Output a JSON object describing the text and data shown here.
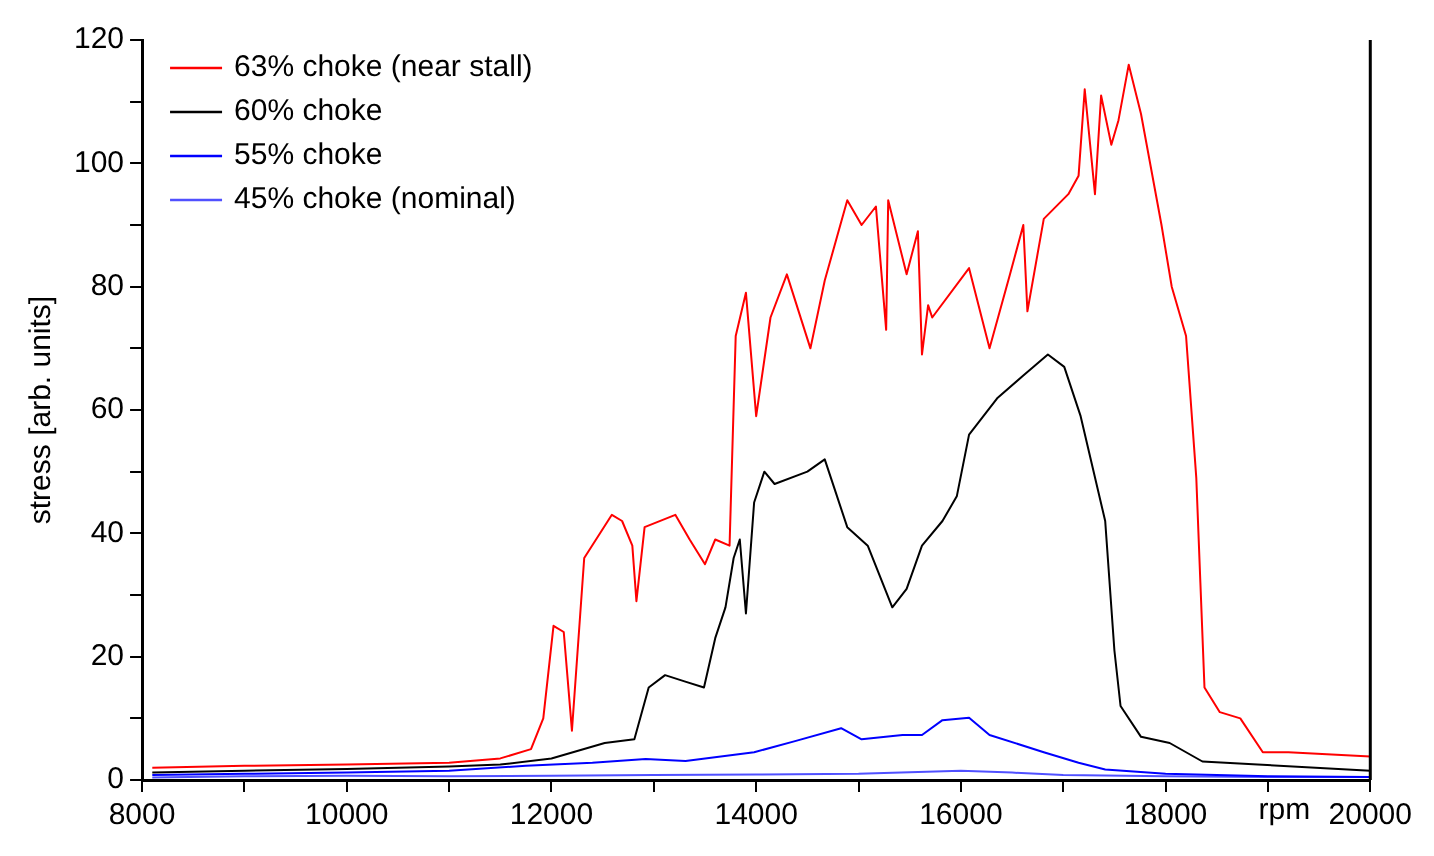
{
  "chart_data": {
    "type": "line",
    "ylabel": "stress [arb. units]",
    "xlabel": "rpm",
    "xlim": [
      8000,
      20000
    ],
    "ylim": [
      0,
      120
    ],
    "xticks": [
      8000,
      {
        "value": 9000,
        "label": null
      },
      10000,
      {
        "value": 11000,
        "label": null
      },
      12000,
      {
        "value": 13000,
        "label": null
      },
      14000,
      {
        "value": 15000,
        "label": null
      },
      16000,
      {
        "value": 17000,
        "label": null
      },
      18000,
      {
        "value": 19000,
        "label": null
      },
      20000
    ],
    "yticks": [
      0,
      {
        "value": 10,
        "label": null
      },
      20,
      {
        "value": 30,
        "label": null
      },
      40,
      {
        "value": 50,
        "label": null
      },
      60,
      {
        "value": 70,
        "label": null
      },
      80,
      {
        "value": 90,
        "label": null
      },
      100,
      {
        "value": 110,
        "label": null
      },
      120
    ],
    "grid": false,
    "legend": "top left",
    "marker": "none",
    "line_style": "solid",
    "series": [
      {
        "name": "63% choke (near stall)",
        "color": "#ff0000",
        "x": [
          8100,
          9000,
          10000,
          11000,
          11500,
          11800,
          11920,
          12020,
          12120,
          12200,
          12320,
          12590,
          12690,
          12790,
          12830,
          12910,
          13210,
          13350,
          13500,
          13600,
          13740,
          13800,
          13900,
          14000,
          14140,
          14300,
          14530,
          14670,
          14890,
          15030,
          15170,
          15270,
          15290,
          15470,
          15580,
          15620,
          15680,
          15720,
          16080,
          16280,
          16480,
          16610,
          16650,
          16810,
          17050,
          17150,
          17210,
          17310,
          17370,
          17470,
          17540,
          17640,
          17760,
          17960,
          18060,
          18200,
          18300,
          18340,
          18380,
          18530,
          18730,
          18950,
          19200,
          20000
        ],
        "values": [
          2,
          2.3,
          2.5,
          2.8,
          3.5,
          5,
          10,
          25,
          24,
          8,
          36,
          43,
          42,
          38,
          29,
          41,
          43,
          39,
          35,
          39,
          38,
          72,
          79,
          59,
          75,
          82,
          70,
          81,
          94,
          90,
          93,
          73,
          94,
          82,
          89,
          69,
          77,
          75,
          83,
          70,
          82,
          90,
          76,
          91,
          95,
          98,
          112,
          95,
          111,
          103,
          107,
          116,
          108,
          90,
          80,
          72,
          49,
          32,
          15,
          11,
          10,
          4.5,
          4.5,
          3.8
        ]
      },
      {
        "name": "60% choke",
        "color": "#000000",
        "x": [
          8100,
          9000,
          10000,
          11000,
          11500,
          12000,
          12520,
          12810,
          12950,
          13110,
          13300,
          13490,
          13600,
          13700,
          13780,
          13840,
          13900,
          13980,
          14080,
          14180,
          14500,
          14670,
          14770,
          14890,
          15090,
          15330,
          15470,
          15620,
          15820,
          15960,
          16080,
          16360,
          16610,
          16850,
          17010,
          17170,
          17410,
          17500,
          17560,
          17760,
          18040,
          18360,
          18900,
          20000
        ],
        "values": [
          1.2,
          1.5,
          1.8,
          2.2,
          2.5,
          3.5,
          6,
          6.6,
          15,
          17,
          16,
          15,
          23,
          28,
          36,
          39,
          27,
          45,
          50,
          48,
          50,
          52,
          47,
          41,
          38,
          28,
          31,
          38,
          42,
          46,
          56,
          62,
          65.6,
          69,
          67,
          59,
          42,
          21,
          12,
          7,
          6,
          3,
          2.5,
          1.5
        ]
      },
      {
        "name": "55% choke",
        "color": "#0000ff",
        "x": [
          8100,
          9000,
          10000,
          11000,
          11750,
          12400,
          12920,
          13310,
          13980,
          14380,
          14830,
          15030,
          15430,
          15620,
          15820,
          16080,
          16280,
          16810,
          17150,
          17410,
          18000,
          19000,
          20000
        ],
        "values": [
          0.8,
          1,
          1.2,
          1.5,
          2.3,
          2.8,
          3.4,
          3.1,
          4.5,
          6.3,
          8.4,
          6.6,
          7.3,
          7.3,
          9.7,
          10.1,
          7.3,
          4.5,
          2.8,
          1.7,
          1,
          0.6,
          0.5
        ]
      },
      {
        "name": "45% choke (nominal)",
        "color": "#5050ff",
        "x": [
          8100,
          9000,
          10000,
          11000,
          12000,
          13000,
          14000,
          15000,
          16000,
          16500,
          17000,
          18000,
          19000,
          20000
        ],
        "values": [
          0.4,
          0.6,
          0.7,
          0.6,
          0.7,
          0.8,
          0.9,
          1,
          1.5,
          1.2,
          0.8,
          0.6,
          0.5,
          0.5
        ]
      }
    ]
  }
}
